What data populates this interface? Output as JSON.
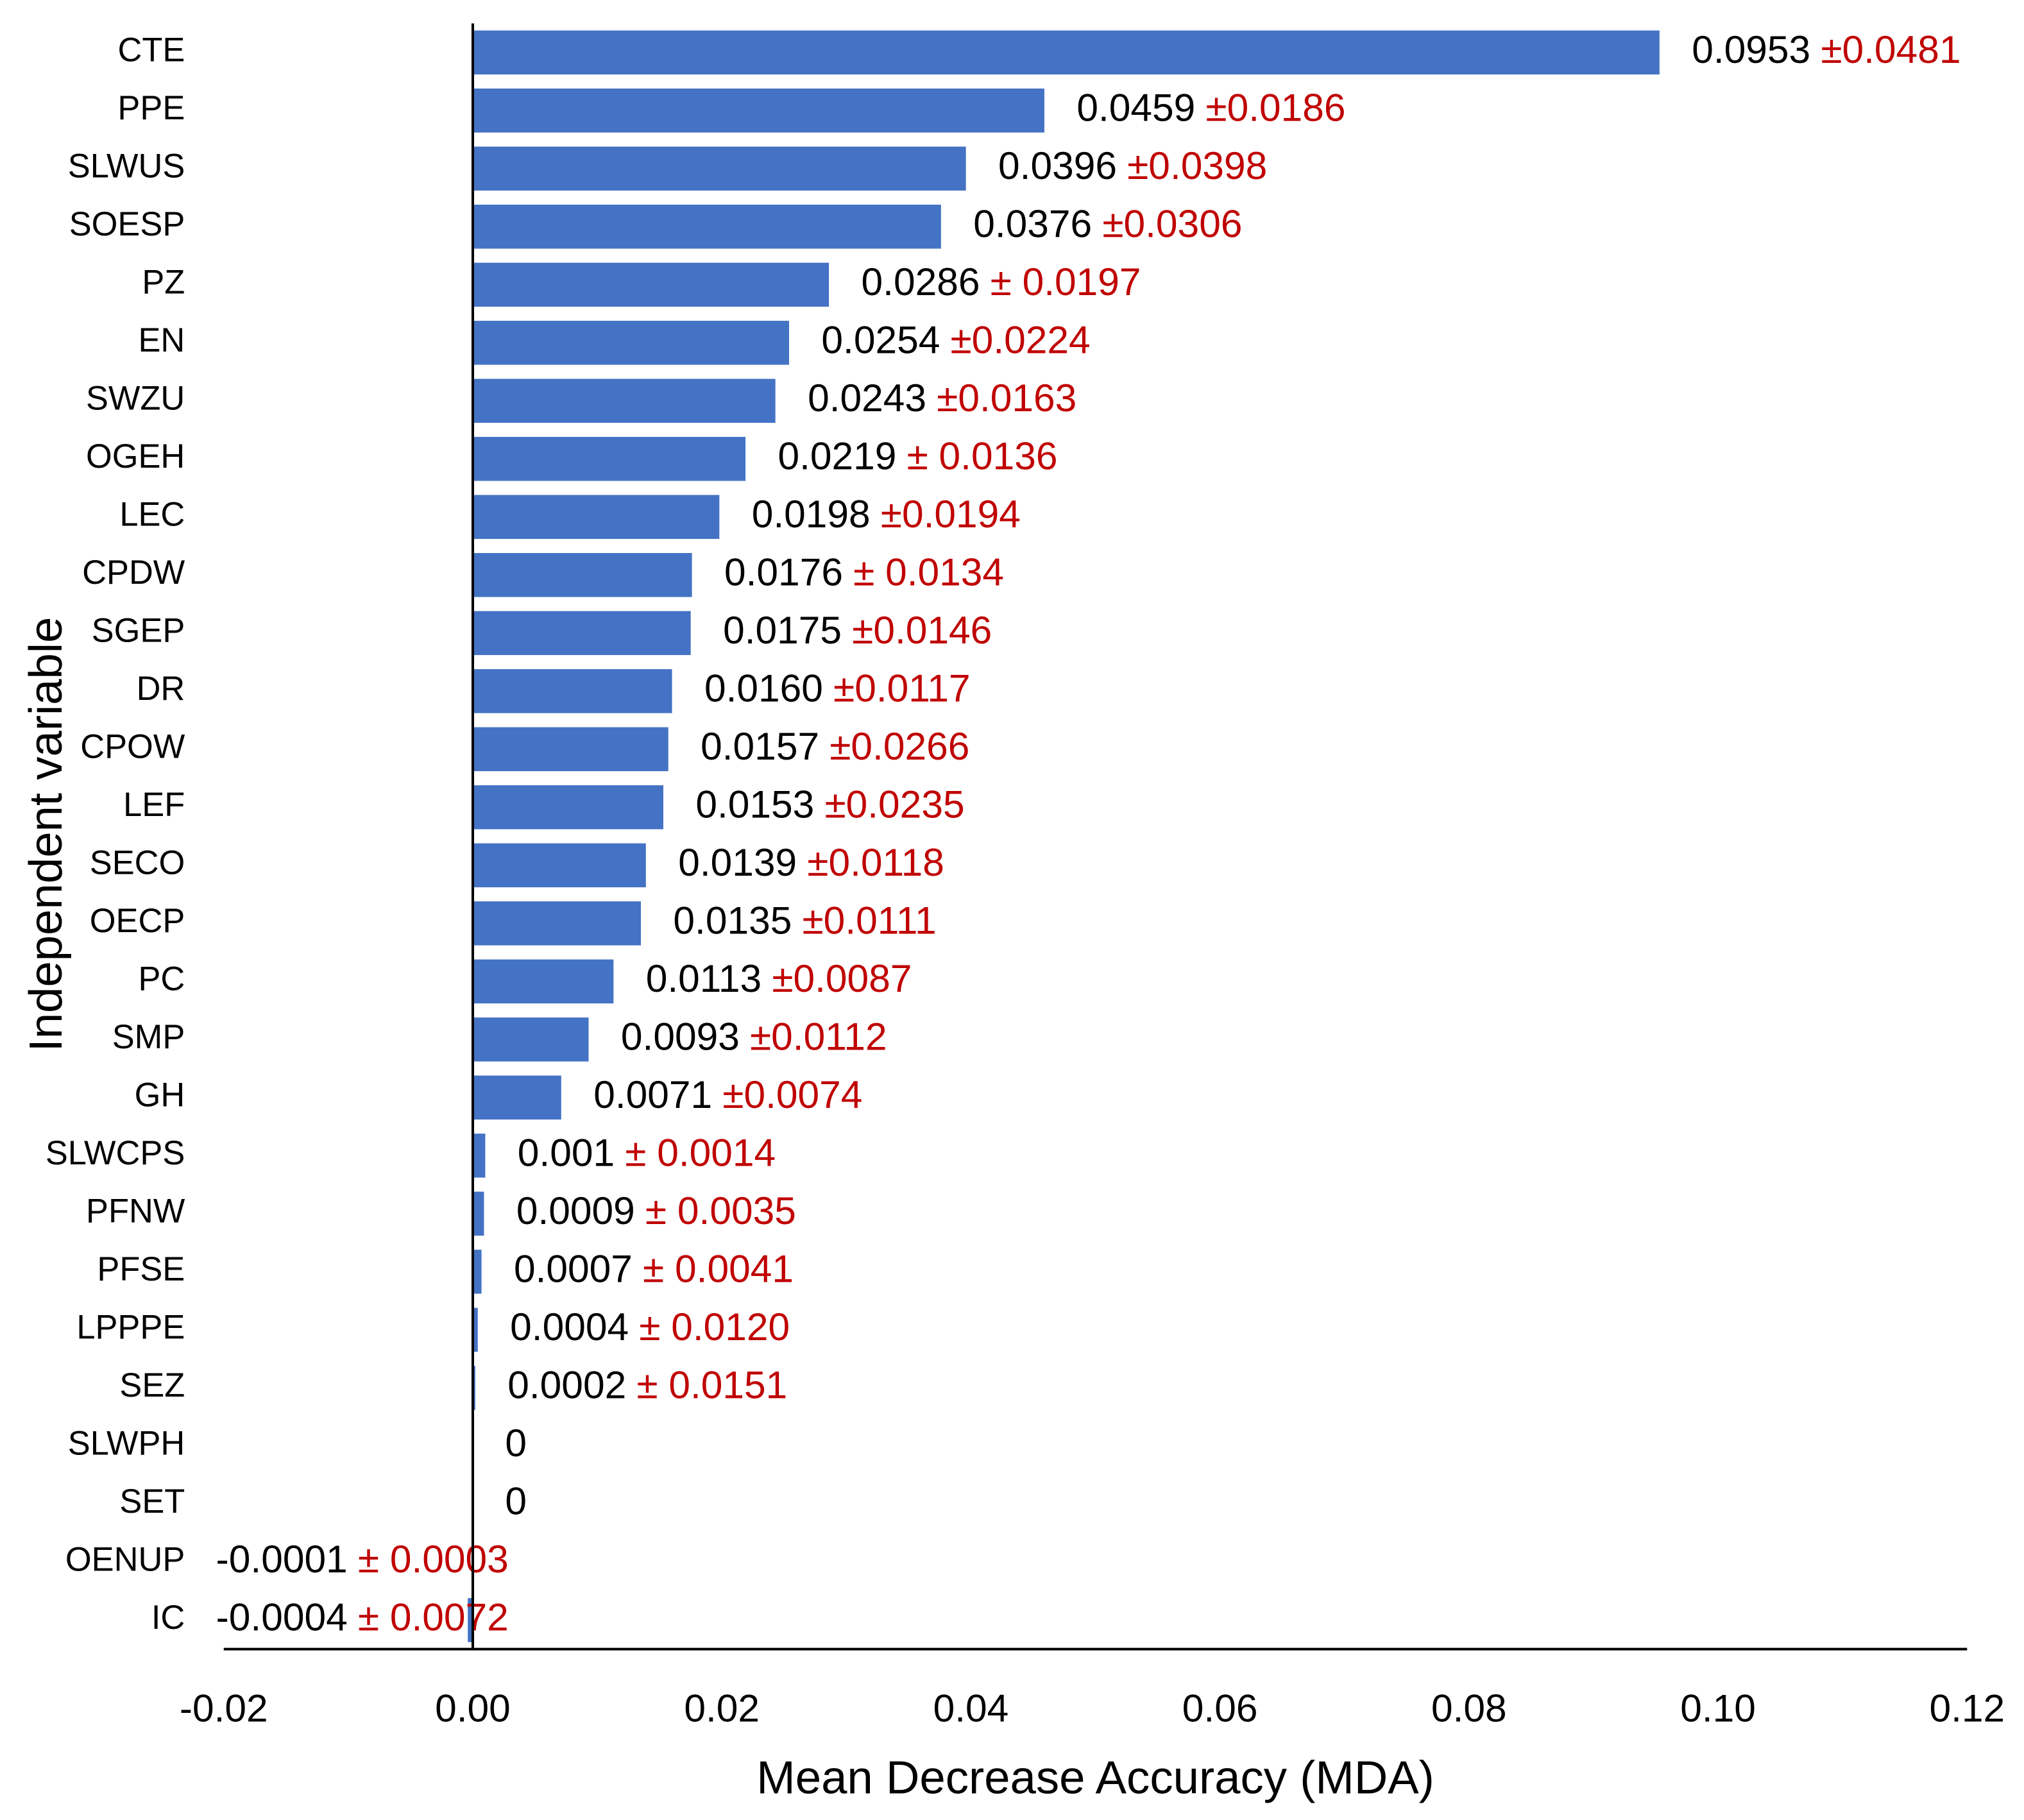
{
  "chart_data": {
    "type": "hbar",
    "x_label": "Mean Decrease Accuracy (MDA)",
    "y_label": "Independent variable",
    "categories": [
      "CTE",
      "PPE",
      "SLWUS",
      "SOESP",
      "PZ",
      "EN",
      "SWZU",
      "OGEH",
      "LEC",
      "CPDW",
      "SGEP",
      "DR",
      "CPOW",
      "LEF",
      "SECO",
      "OECP",
      "PC",
      "SMP",
      "GH",
      "SLWCPS",
      "PFNW",
      "PFSE",
      "LPPPE",
      "SEZ",
      "SLWPH",
      "SET",
      "OENUP",
      "IC"
    ],
    "values": [
      0.0953,
      0.0459,
      0.0396,
      0.0376,
      0.0286,
      0.0254,
      0.0243,
      0.0219,
      0.0198,
      0.0176,
      0.0175,
      0.016,
      0.0157,
      0.0153,
      0.0139,
      0.0135,
      0.0113,
      0.0093,
      0.0071,
      0.001,
      0.0009,
      0.0007,
      0.0004,
      0.0002,
      0,
      0,
      -0.0001,
      -0.0004
    ],
    "value_labels": [
      "0.0953",
      "0.0459",
      "0.0396",
      "0.0376",
      "0.0286",
      "0.0254",
      "0.0243",
      "0.0219",
      "0.0198",
      "0.0176",
      "0.0175",
      "0.0160",
      "0.0157",
      "0.0153",
      "0.0139",
      "0.0135",
      "0.0113",
      "0.0093",
      "0.0071",
      "0.001",
      "0.0009",
      "0.0007",
      "0.0004",
      "0.0002",
      "0",
      "0",
      "-0.0001",
      "-0.0004"
    ],
    "error_labels": [
      "±0.0481",
      "±0.0186",
      "±0.0398",
      "±0.0306",
      "± 0.0197",
      "±0.0224",
      "±0.0163",
      "± 0.0136",
      "±0.0194",
      "± 0.0134",
      "±0.0146",
      "±0.0117",
      "±0.0266",
      "±0.0235",
      "±0.0118",
      "±0.0111",
      "±0.0087",
      "±0.0112",
      "±0.0074",
      "± 0.0014",
      "± 0.0035",
      "± 0.0041",
      "± 0.0120",
      "± 0.0151",
      null,
      null,
      "± 0.0003",
      "± 0.0072"
    ],
    "color": "#4472c4",
    "error_color": "#c00000",
    "xlim": [
      -0.02,
      0.12
    ],
    "xticks": [
      -0.02,
      {
        "value": 0,
        "label": "0.00"
      },
      0.02,
      0.04,
      0.06,
      0.08,
      {
        "value": 0.1,
        "label": "0.10"
      },
      0.12
    ]
  }
}
